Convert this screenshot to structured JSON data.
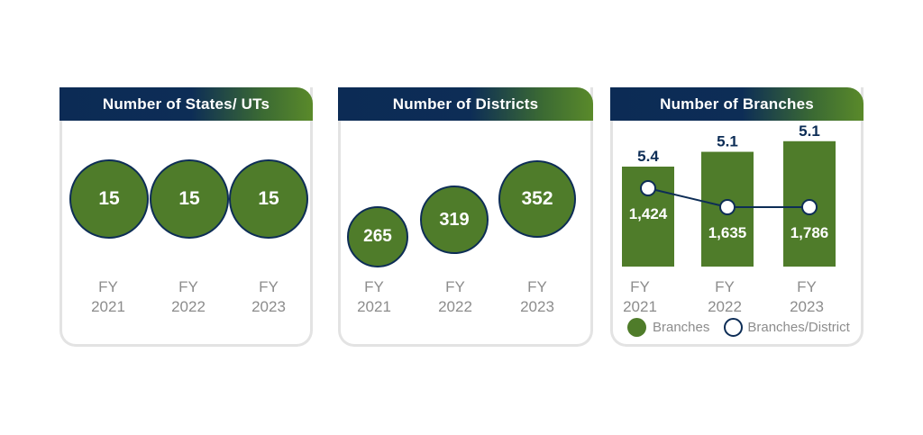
{
  "colors": {
    "green": "#4f7c2a",
    "navy": "#0d2d56",
    "label_gray": "#8c8c8c",
    "border_gray": "#e3e3e3"
  },
  "states_card": {
    "title": "Number of States/ UTs"
  },
  "districts_card": {
    "title": "Number of Districts"
  },
  "branches_card": {
    "title": "Number of Branches",
    "legend": {
      "bar_label": "Branches",
      "line_label": "Branches/District"
    }
  },
  "chart_data": [
    {
      "type": "bubble",
      "title": "Number of States/ UTs",
      "categories": [
        "FY\n2021",
        "FY\n2022",
        "FY\n2023"
      ],
      "values": [
        15,
        15,
        15
      ],
      "value_labels": [
        "15",
        "15",
        "15"
      ]
    },
    {
      "type": "bubble",
      "title": "Number of Districts",
      "categories": [
        "FY\n2021",
        "FY\n2022",
        "FY\n2023"
      ],
      "values": [
        265,
        319,
        352
      ],
      "value_labels": [
        "265",
        "319",
        "352"
      ]
    },
    {
      "type": "bar",
      "title": "Number of Branches",
      "categories": [
        "FY\n2021",
        "FY\n2022",
        "FY\n2023"
      ],
      "series": [
        {
          "name": "Branches",
          "type": "bar",
          "values": [
            1424,
            1635,
            1786
          ],
          "labels": [
            "1,424",
            "1,635",
            "1,786"
          ]
        },
        {
          "name": "Branches/District",
          "type": "line",
          "values": [
            5.4,
            5.1,
            5.1
          ],
          "labels": [
            "5.4",
            "5.1",
            "5.1"
          ]
        }
      ],
      "legend": "bottom"
    }
  ]
}
